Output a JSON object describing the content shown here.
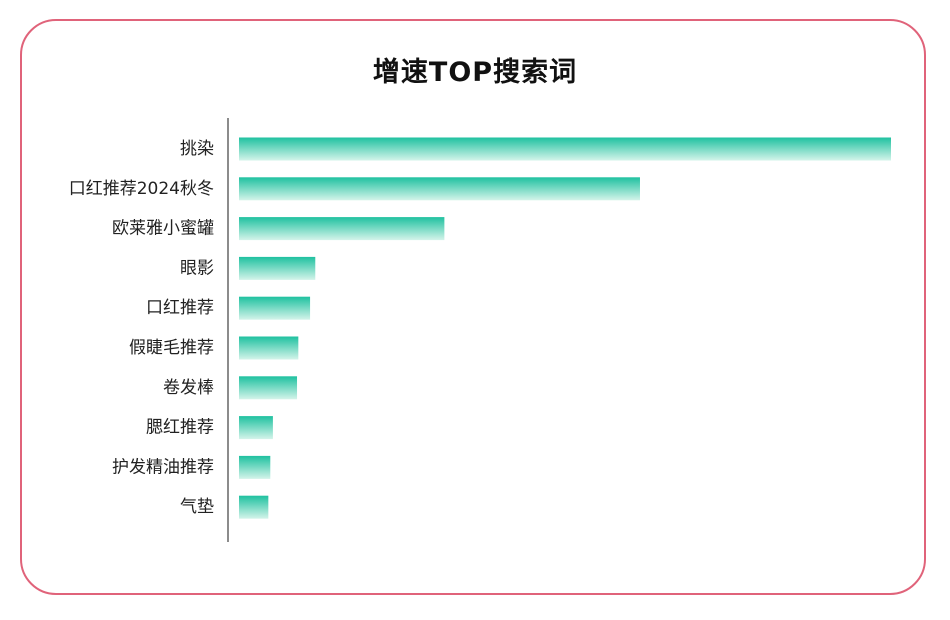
{
  "chart_data": {
    "type": "bar",
    "orientation": "horizontal",
    "title": "增速TOP搜索词",
    "categories": [
      "挑染",
      "口红推荐2024秋冬",
      "欧莱雅小蜜罐",
      "眼影",
      "口红推荐",
      "假睫毛推荐",
      "卷发棒",
      "腮红推荐",
      "护发精油推荐",
      "气垫"
    ],
    "values": [
      100,
      61.5,
      31.5,
      11.7,
      10.9,
      9.1,
      8.9,
      5.2,
      4.8,
      4.5
    ],
    "xlim": [
      0,
      100
    ],
    "xlabel": "",
    "ylabel": "",
    "grid": false,
    "legend": "none"
  },
  "colors": {
    "border": "#e0637a",
    "bar_top": "#1fc1a0",
    "bar_bottom": "#d4f4ea",
    "axis": "#666666"
  }
}
